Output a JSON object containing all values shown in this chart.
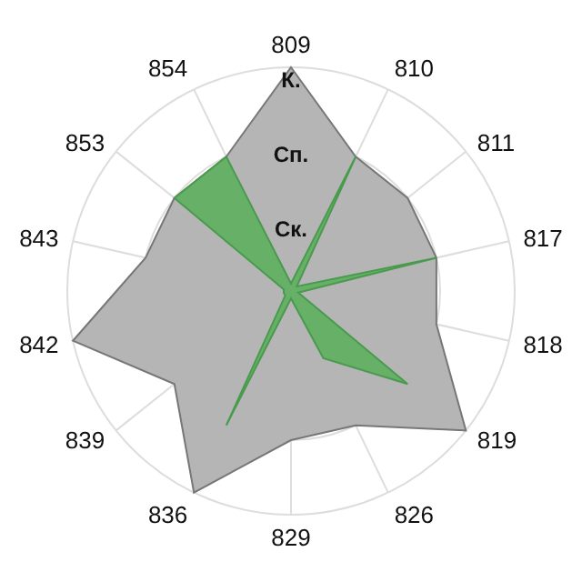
{
  "chart_data": {
    "type": "radar",
    "categories": [
      "809",
      "810",
      "811",
      "817",
      "818",
      "819",
      "826",
      "829",
      "836",
      "839",
      "842",
      "843",
      "853",
      "854"
    ],
    "series": [
      {
        "color": "#b5b5b5",
        "values": [
          3,
          2,
          2,
          2,
          2,
          3,
          2,
          2,
          3,
          2,
          3,
          2,
          2,
          2
        ]
      },
      {
        "color": "#66b068",
        "values": [
          0.1,
          2,
          0.1,
          2,
          0.1,
          2,
          1,
          0.1,
          2,
          0.1,
          0.1,
          0.1,
          2,
          2
        ]
      }
    ],
    "ylim": [
      0,
      3
    ],
    "yticks": [
      {
        "value": 1,
        "label": "Ск."
      },
      {
        "value": 2,
        "label": "Сп."
      },
      {
        "value": 3,
        "label": "К."
      }
    ],
    "grid": true
  }
}
